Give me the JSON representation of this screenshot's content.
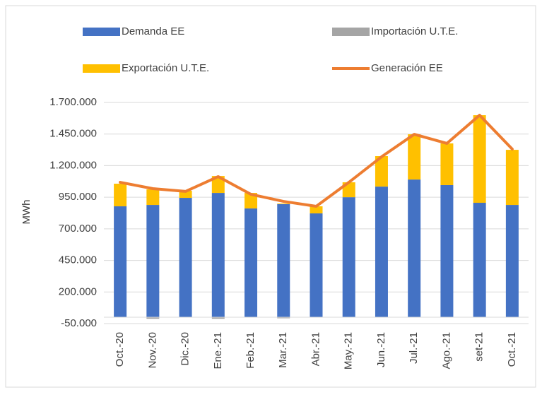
{
  "chart_data": {
    "type": "bar",
    "stacked": true,
    "y_label": "MWh",
    "categories": [
      "Oct.-20",
      "Nov.-20",
      "Dic.-20",
      "Ene.-21",
      "Feb.-21",
      "Mar.-21",
      "Abr.-21",
      "May.-21",
      "Jun.-21",
      "Jul.-21",
      "Ago.-21",
      "set-21",
      "Oct.-21"
    ],
    "series": [
      {
        "name": "Demanda EE",
        "type": "bar",
        "color": "#4472c4",
        "values": [
          878000,
          889000,
          945000,
          984000,
          861000,
          895000,
          822000,
          950000,
          1034000,
          1090000,
          1046000,
          906000,
          889000
        ]
      },
      {
        "name": "Importación U.T.E.",
        "type": "bar",
        "color": "#a5a5a5",
        "values": [
          0,
          -12000,
          0,
          -12000,
          0,
          -8000,
          0,
          0,
          0,
          0,
          0,
          0,
          0
        ]
      },
      {
        "name": "Exportación U.T.E.",
        "type": "bar",
        "color": "#ffc000",
        "values": [
          179000,
          123000,
          56000,
          134000,
          123000,
          5000,
          56000,
          118000,
          241000,
          358000,
          330000,
          693000,
          436000
        ]
      },
      {
        "name": "Generación EE",
        "type": "line",
        "color": "#ed7d31",
        "values": [
          1068000,
          1018000,
          996000,
          1113000,
          973000,
          917000,
          878000,
          1068000,
          1270000,
          1448000,
          1376000,
          1599000,
          1331000
        ]
      }
    ],
    "ylim": [
      -50000,
      1700000
    ],
    "yticks": [
      {
        "value": -50000,
        "label": "-50.000"
      },
      {
        "value": 200000,
        "label": "200.000"
      },
      {
        "value": 450000,
        "label": "450.000"
      },
      {
        "value": 700000,
        "label": "700.000"
      },
      {
        "value": 950000,
        "label": "950.000"
      },
      {
        "value": 1200000,
        "label": "1.200.000"
      },
      {
        "value": 1450000,
        "label": "1.450.000"
      },
      {
        "value": 1700000,
        "label": "1.700.000"
      }
    ],
    "grid": true
  }
}
